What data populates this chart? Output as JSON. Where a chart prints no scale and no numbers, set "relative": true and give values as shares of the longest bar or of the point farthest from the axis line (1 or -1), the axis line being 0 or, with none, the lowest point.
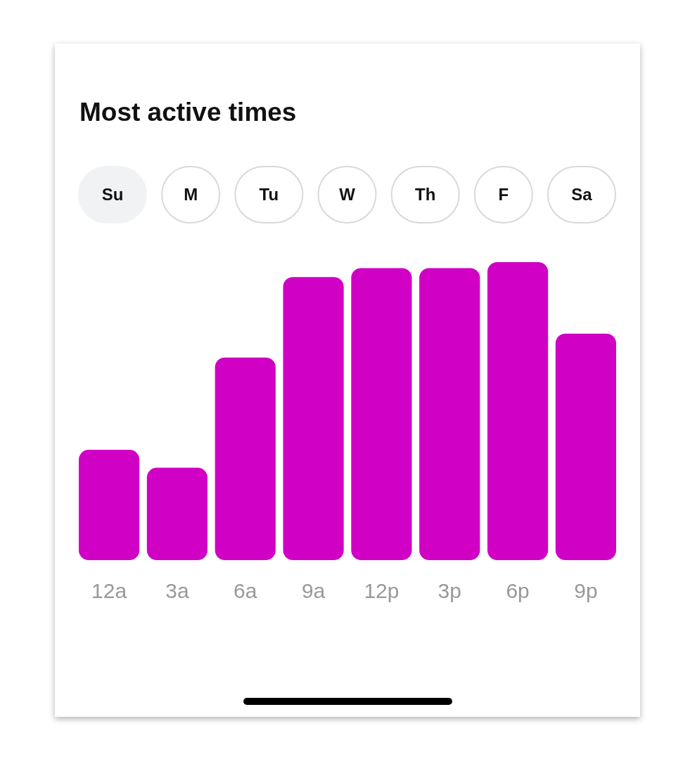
{
  "chart_data": {
    "type": "bar",
    "title": "Most active times",
    "relative": true,
    "categories": [
      "12a",
      "3a",
      "6a",
      "9a",
      "12p",
      "3p",
      "6p",
      "9p"
    ],
    "values": [
      0.37,
      0.31,
      0.68,
      0.95,
      0.98,
      0.98,
      1,
      0.76
    ],
    "color": "#d000c5",
    "annotations": [
      "Su",
      "M",
      "Tu",
      "W",
      "Th",
      "F",
      "Sa"
    ]
  }
}
